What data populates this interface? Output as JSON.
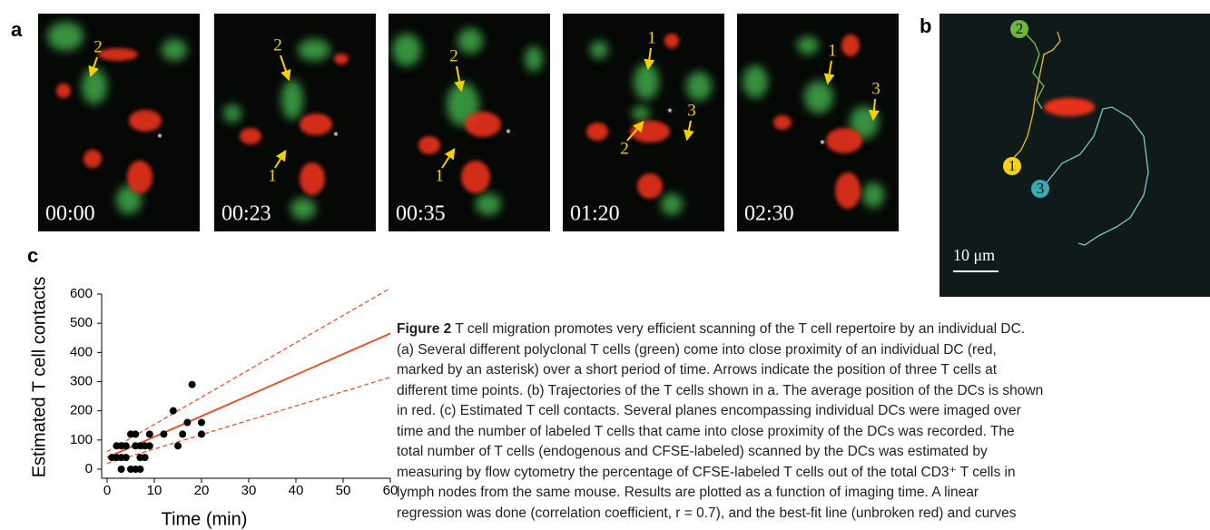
{
  "panel_labels": {
    "a": "a",
    "b": "b",
    "c": "c"
  },
  "frames": [
    {
      "time": "00:00",
      "arrows": [
        "2"
      ],
      "asterisk": "*"
    },
    {
      "time": "00:23",
      "arrows": [
        "2",
        "1"
      ],
      "asterisk": "*"
    },
    {
      "time": "00:35",
      "arrows": [
        "2",
        "1"
      ],
      "asterisk": "*"
    },
    {
      "time": "01:20",
      "arrows": [
        "1",
        "2",
        "3"
      ],
      "asterisk": "*"
    },
    {
      "time": "02:30",
      "arrows": [
        "1",
        "3"
      ],
      "asterisk": "*"
    }
  ],
  "trajectories": {
    "labels": [
      "1",
      "2",
      "3"
    ],
    "scale_bar": "10 μm"
  },
  "chart_data": {
    "type": "scatter",
    "x_label": "Time (min)",
    "y_label": "Estimated T cell contacts",
    "x": [
      1,
      2,
      2,
      3,
      3,
      3,
      4,
      4,
      5,
      5,
      6,
      6,
      6,
      7,
      7,
      7,
      8,
      8,
      9,
      9,
      12,
      14,
      15,
      16,
      17,
      18,
      20,
      20
    ],
    "values": [
      40,
      40,
      80,
      0,
      40,
      80,
      40,
      80,
      120,
      0,
      0,
      120,
      80,
      40,
      0,
      80,
      80,
      40,
      120,
      80,
      120,
      200,
      80,
      120,
      160,
      290,
      160,
      120
    ],
    "color": "#000000",
    "fit_lines": [
      {
        "x": [
          0,
          60
        ],
        "values": [
          40,
          465
        ],
        "color": "#e8542a",
        "dashed": false
      },
      {
        "x": [
          0,
          60
        ],
        "values": [
          60,
          620
        ],
        "color": "#e8542a",
        "dashed": true
      },
      {
        "x": [
          0,
          60
        ],
        "values": [
          20,
          315
        ],
        "color": "#e8542a",
        "dashed": true
      }
    ],
    "xlim": [
      0,
      60
    ],
    "ylim": [
      0,
      600
    ],
    "xticks": [
      0,
      10,
      20,
      30,
      40,
      50,
      60
    ],
    "yticks": [
      0,
      100,
      200,
      300,
      400,
      500,
      600
    ]
  },
  "caption": {
    "label": "Figure 2",
    "lines": [
      "T cell migration promotes very efficient scanning of the T cell repertoire by an individual DC.",
      "(a) Several different polyclonal T cells (green) come into close proximity of an individual DC (red,",
      "marked by an asterisk) over a short period of time. Arrows indicate the position of three T cells at",
      "different time points. (b) Trajectories of the T cells shown in a. The average position of the DCs is shown",
      "in red. (c) Estimated T cell contacts. Several planes encompassing individual DCs were imaged over",
      "time and the number of labeled T cells that came into close proximity of the DCs was recorded. The",
      "total number of T cells (endogenous and CFSE-labeled) scanned by the DCs was estimated by",
      "measuring by flow cytometry the percentage of CFSE-labeled T cells out of the total CD3⁺ T cells in",
      "lymph nodes from the same mouse. Results are plotted as a function of imaging time. A linear",
      "regression was done (correlation coefficient, r = 0.7), and the best-fit line (unbroken red) and curves"
    ]
  }
}
